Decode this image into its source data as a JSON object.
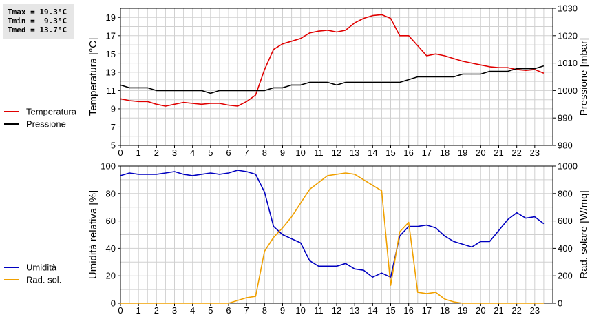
{
  "stats": {
    "tmax": "Tmax = 19.3°C",
    "tmin": "Tmin =  9.3°C",
    "tmed": "Tmed = 13.7°C"
  },
  "chart_data": [
    {
      "type": "line",
      "ylabel": "Temperatura [°C]",
      "y2label": "Pressione [mbar]",
      "xlim": [
        0,
        24
      ],
      "ylim": [
        5,
        20
      ],
      "y2lim": [
        980,
        1030
      ],
      "xticks": [
        0,
        1,
        2,
        3,
        4,
        5,
        6,
        7,
        8,
        9,
        10,
        11,
        12,
        13,
        14,
        15,
        16,
        17,
        18,
        19,
        20,
        21,
        22,
        23
      ],
      "yticks": [
        5,
        7,
        9,
        11,
        13,
        15,
        17,
        19
      ],
      "y2ticks": [
        980,
        990,
        1000,
        1010,
        1020,
        1030
      ],
      "grid": true,
      "legend_position": "left",
      "series": [
        {
          "name": "Temperatura",
          "axis": "left",
          "color": "#e00000",
          "x": [
            0,
            0.5,
            1,
            1.5,
            2,
            2.5,
            3,
            3.5,
            4,
            4.5,
            5,
            5.5,
            6,
            6.5,
            7,
            7.5,
            8,
            8.5,
            9,
            9.5,
            10,
            10.5,
            11,
            11.5,
            12,
            12.5,
            13,
            13.5,
            14,
            14.5,
            15,
            15.5,
            16,
            16.5,
            17,
            17.5,
            18,
            18.5,
            19,
            19.5,
            20,
            20.5,
            21,
            21.5,
            22,
            22.5,
            23,
            23.5
          ],
          "y": [
            10.1,
            9.9,
            9.8,
            9.8,
            9.5,
            9.3,
            9.5,
            9.7,
            9.6,
            9.5,
            9.6,
            9.6,
            9.4,
            9.3,
            9.8,
            10.5,
            13.3,
            15.5,
            16.1,
            16.4,
            16.7,
            17.3,
            17.5,
            17.6,
            17.4,
            17.6,
            18.4,
            18.9,
            19.2,
            19.3,
            18.9,
            17.0,
            17.0,
            15.9,
            14.8,
            15.0,
            14.8,
            14.5,
            14.2,
            14.0,
            13.8,
            13.6,
            13.5,
            13.5,
            13.3,
            13.2,
            13.3,
            12.9
          ]
        },
        {
          "name": "Pressione",
          "axis": "right",
          "color": "#000000",
          "x": [
            0,
            0.5,
            1,
            1.5,
            2,
            2.5,
            3,
            3.5,
            4,
            4.5,
            5,
            5.5,
            6,
            6.5,
            7,
            7.5,
            8,
            8.5,
            9,
            9.5,
            10,
            10.5,
            11,
            11.5,
            12,
            12.5,
            13,
            13.5,
            14,
            14.5,
            15,
            15.5,
            16,
            16.5,
            17,
            17.5,
            18,
            18.5,
            19,
            19.5,
            20,
            20.5,
            21,
            21.5,
            22,
            22.5,
            23,
            23.5
          ],
          "y": [
            1002,
            1001,
            1001,
            1001,
            1000,
            1000,
            1000,
            1000,
            1000,
            1000,
            999,
            1000,
            1000,
            1000,
            1000,
            1000,
            1000,
            1001,
            1001,
            1002,
            1002,
            1003,
            1003,
            1003,
            1002,
            1003,
            1003,
            1003,
            1003,
            1003,
            1003,
            1003,
            1004,
            1005,
            1005,
            1005,
            1005,
            1005,
            1006,
            1006,
            1006,
            1007,
            1007,
            1007,
            1008,
            1008,
            1008,
            1009
          ]
        }
      ]
    },
    {
      "type": "line",
      "ylabel": "Umidità relativa [%]",
      "y2label": "Rad. solare [W/mq]",
      "xlim": [
        0,
        24
      ],
      "ylim": [
        0,
        100
      ],
      "y2lim": [
        0,
        1000
      ],
      "xticks": [
        0,
        1,
        2,
        3,
        4,
        5,
        6,
        7,
        8,
        9,
        10,
        11,
        12,
        13,
        14,
        15,
        16,
        17,
        18,
        19,
        20,
        21,
        22,
        23
      ],
      "yticks": [
        0,
        20,
        40,
        60,
        80,
        100
      ],
      "y2ticks": [
        0,
        200,
        400,
        600,
        800,
        1000
      ],
      "grid": true,
      "legend_position": "left",
      "series": [
        {
          "name": "Umidità",
          "axis": "left",
          "color": "#0000c0",
          "x": [
            0,
            0.5,
            1,
            1.5,
            2,
            2.5,
            3,
            3.5,
            4,
            4.5,
            5,
            5.5,
            6,
            6.5,
            7,
            7.5,
            8,
            8.5,
            9,
            9.5,
            10,
            10.5,
            11,
            11.5,
            12,
            12.5,
            13,
            13.5,
            14,
            14.5,
            15,
            15.5,
            16,
            16.5,
            17,
            17.5,
            18,
            18.5,
            19,
            19.5,
            20,
            20.5,
            21,
            21.5,
            22,
            22.5,
            23,
            23.5
          ],
          "y": [
            93,
            95,
            94,
            94,
            94,
            95,
            96,
            94,
            93,
            94,
            95,
            94,
            95,
            97,
            96,
            94,
            81,
            56,
            50,
            47,
            44,
            31,
            27,
            27,
            27,
            29,
            25,
            24,
            19,
            22,
            19,
            49,
            56,
            56,
            57,
            55,
            49,
            45,
            43,
            41,
            45,
            45,
            53,
            61,
            66,
            62,
            63,
            58
          ]
        },
        {
          "name": "Rad. sol.",
          "axis": "right",
          "color": "#f0a000",
          "x": [
            0,
            0.5,
            1,
            1.5,
            2,
            2.5,
            3,
            3.5,
            4,
            4.5,
            5,
            5.5,
            6,
            6.5,
            7,
            7.5,
            8,
            8.5,
            9,
            9.5,
            10,
            10.5,
            11,
            11.5,
            12,
            12.5,
            13,
            13.5,
            14,
            14.5,
            15,
            15.5,
            16,
            16.5,
            17,
            17.5,
            18,
            18.5,
            19,
            19.5,
            20,
            20.5,
            21,
            21.5,
            22,
            22.5,
            23,
            23.5
          ],
          "y": [
            0,
            0,
            0,
            0,
            0,
            0,
            0,
            0,
            0,
            0,
            0,
            0,
            0,
            20,
            40,
            50,
            380,
            480,
            550,
            630,
            730,
            830,
            880,
            930,
            940,
            950,
            940,
            900,
            860,
            820,
            130,
            520,
            590,
            80,
            70,
            80,
            30,
            10,
            0,
            0,
            0,
            0,
            0,
            0,
            0,
            0,
            0,
            0
          ]
        }
      ]
    }
  ]
}
